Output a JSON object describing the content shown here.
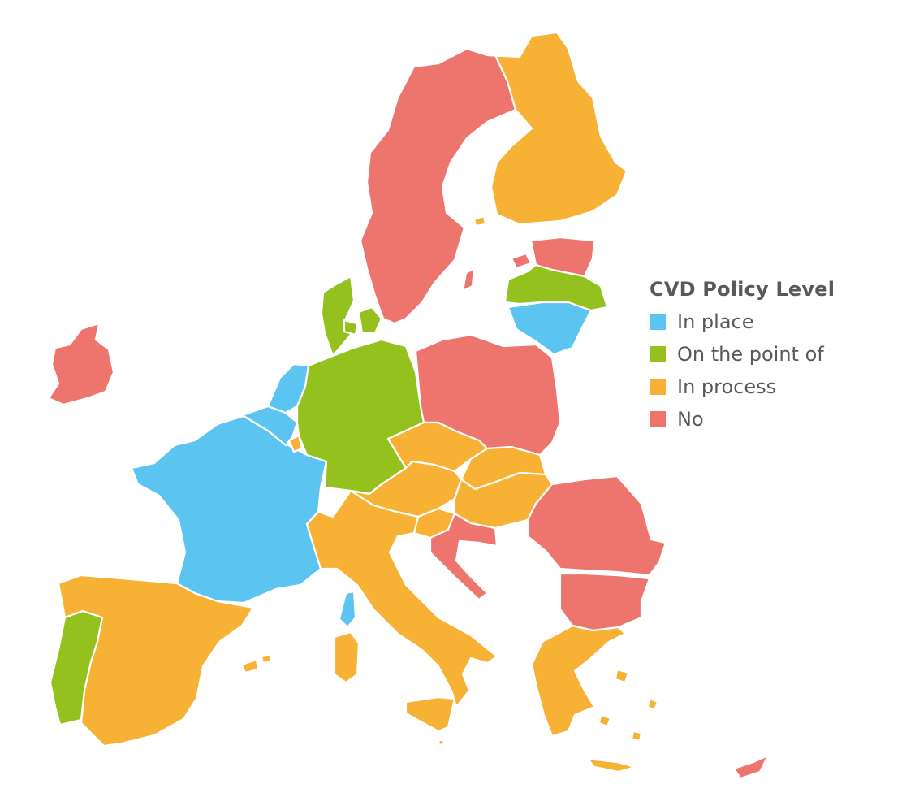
{
  "legend": {
    "title": "CVD Policy Level",
    "items": [
      {
        "key": "in_place",
        "label": "In place",
        "color": "#5bc4f1"
      },
      {
        "key": "on_point",
        "label": "On the point of",
        "color": "#95c11f"
      },
      {
        "key": "in_process",
        "label": "In process",
        "color": "#f7b134"
      },
      {
        "key": "no",
        "label": "No",
        "color": "#ee756e"
      }
    ]
  },
  "countries": [
    {
      "name": "Ireland",
      "level": "no"
    },
    {
      "name": "Portugal",
      "level": "on_point"
    },
    {
      "name": "Spain",
      "level": "in_process"
    },
    {
      "name": "France",
      "level": "in_place"
    },
    {
      "name": "Belgium",
      "level": "in_place"
    },
    {
      "name": "Netherlands",
      "level": "in_place"
    },
    {
      "name": "Luxembourg",
      "level": "in_process"
    },
    {
      "name": "Germany",
      "level": "on_point"
    },
    {
      "name": "Denmark",
      "level": "on_point"
    },
    {
      "name": "Sweden",
      "level": "no"
    },
    {
      "name": "Finland",
      "level": "in_process"
    },
    {
      "name": "Estonia",
      "level": "no"
    },
    {
      "name": "Latvia",
      "level": "on_point"
    },
    {
      "name": "Lithuania",
      "level": "in_place"
    },
    {
      "name": "Poland",
      "level": "no"
    },
    {
      "name": "Czechia",
      "level": "in_process"
    },
    {
      "name": "Slovakia",
      "level": "in_process"
    },
    {
      "name": "Austria",
      "level": "in_process"
    },
    {
      "name": "Hungary",
      "level": "in_process"
    },
    {
      "name": "Slovenia",
      "level": "in_process"
    },
    {
      "name": "Croatia",
      "level": "no"
    },
    {
      "name": "Romania",
      "level": "no"
    },
    {
      "name": "Bulgaria",
      "level": "no"
    },
    {
      "name": "Italy",
      "level": "in_process"
    },
    {
      "name": "Sicily",
      "level": "in_process"
    },
    {
      "name": "Sardinia",
      "level": "in_process"
    },
    {
      "name": "Corsica",
      "level": "in_place"
    },
    {
      "name": "Greece",
      "level": "in_process"
    },
    {
      "name": "Crete",
      "level": "in_process"
    },
    {
      "name": "Cyprus",
      "level": "no"
    },
    {
      "name": "Malta",
      "level": "in_process"
    },
    {
      "name": "Balearic Islands",
      "level": "in_process"
    },
    {
      "name": "Gotland",
      "level": "no"
    },
    {
      "name": "Estonian Islands",
      "level": "no"
    },
    {
      "name": "Danish Islands",
      "level": "on_point"
    },
    {
      "name": "Aland",
      "level": "in_process"
    }
  ]
}
